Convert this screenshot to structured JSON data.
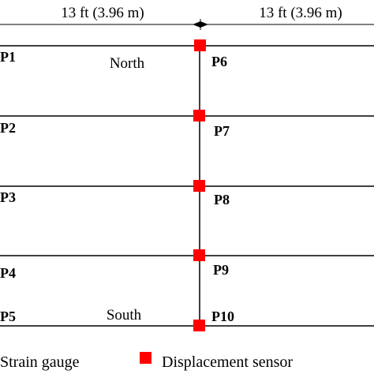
{
  "dimension": {
    "left_label": "13 ft (3.96 m)",
    "right_label": "13 ft (3.96 m)"
  },
  "region_labels": {
    "north": "North",
    "south": "South"
  },
  "rows": [
    {
      "left": "P1",
      "right": "P6"
    },
    {
      "left": "P2",
      "right": "P7"
    },
    {
      "left": "P3",
      "right": "P8"
    },
    {
      "left": "P4",
      "right": "P9"
    },
    {
      "left": "P5",
      "right": "P10"
    }
  ],
  "legend": {
    "strain_gauge": "Strain gauge",
    "displacement_sensor": "Displacement sensor"
  },
  "colors": {
    "sensor": "#ff0000",
    "line": "#000000"
  }
}
